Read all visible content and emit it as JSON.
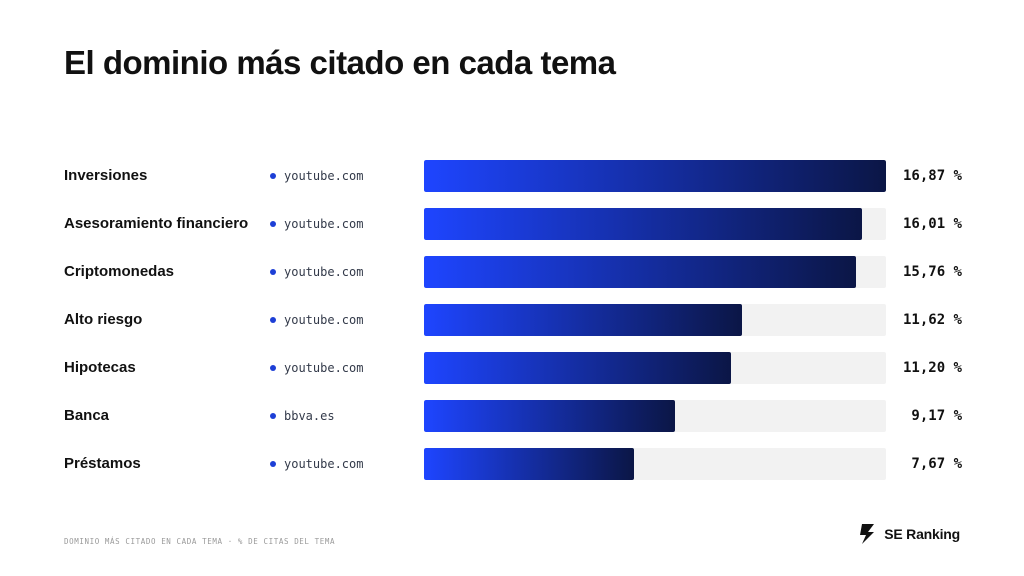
{
  "title": "El dominio más citado en cada tema",
  "footnote": "DOMINIO MÁS CITADO EN CADA TEMA · % DE CITAS DEL TEMA",
  "brand": {
    "name": "SE Ranking",
    "icon": "se-ranking-logo-icon"
  },
  "colors": {
    "bar_start": "#1e45ff",
    "bar_end": "#0b1646",
    "track": "#f2f2f2",
    "dot": "#1d3fd6"
  },
  "chart_data": {
    "type": "bar",
    "orientation": "horizontal",
    "xlim": [
      0,
      16.87
    ],
    "categories": [
      "Inversiones",
      "Asesoramiento financiero",
      "Criptomonedas",
      "Alto riesgo",
      "Hipotecas",
      "Banca",
      "Préstamos"
    ],
    "domains": [
      "youtube.com",
      "youtube.com",
      "youtube.com",
      "youtube.com",
      "youtube.com",
      "bbva.es",
      "youtube.com"
    ],
    "values": [
      16.87,
      16.01,
      15.76,
      11.62,
      11.2,
      9.17,
      7.67
    ],
    "value_labels": [
      "16,87 %",
      "16,01 %",
      "15,76 %",
      "11,62 %",
      "11,20 %",
      "9,17 %",
      "7,67 %"
    ]
  }
}
